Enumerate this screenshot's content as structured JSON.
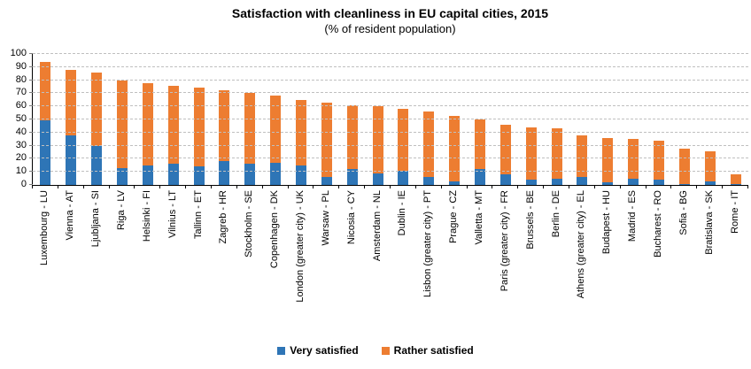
{
  "chart": {
    "title": "Satisfaction with cleanliness in EU capital cities, 2015",
    "subtitle": "(% of resident population)"
  },
  "chart_data": {
    "type": "bar",
    "stacked": true,
    "title": "Satisfaction with cleanliness in EU capital cities, 2015",
    "subtitle": "(% of resident population)",
    "categories": [
      "Luxembourg - LU",
      "Vienna - AT",
      "Ljubljana - SI",
      "Riga - LV",
      "Helsinki - FI",
      "Vilnius - LT",
      "Tallinn - ET",
      "Zagreb - HR",
      "Stockholm - SE",
      "Copenhagen - DK",
      "London (greater city) - UK",
      "Warsaw - PL",
      "Nicosia - CY",
      "Amsterdam - NL",
      "Dublin - IE",
      "Lisbon (greater city) - PT",
      "Prague - CZ",
      "Valletta - MT",
      "Paris (greater city) - FR",
      "Brussels - BE",
      "Berlin - DE",
      "Athens (greater city) - EL",
      "Budapest - HU",
      "Madrid - ES",
      "Bucharest - RO",
      "Sofia - BG",
      "Bratislava - SK",
      "Rome - IT"
    ],
    "series": [
      {
        "name": "Very satisfied",
        "color": "#2e75b6",
        "values": [
          49,
          38,
          30,
          13,
          15,
          16,
          14,
          18,
          16,
          17,
          15,
          6,
          12,
          9,
          11,
          6,
          3,
          12,
          8,
          4,
          5,
          6,
          2,
          5,
          4,
          1,
          3,
          1
        ]
      },
      {
        "name": "Rather satisfied",
        "color": "#ed7d31",
        "values": [
          45,
          50,
          56,
          67,
          63,
          60,
          60,
          54,
          54,
          51,
          50,
          57,
          49,
          51,
          47,
          50,
          50,
          38,
          38,
          40,
          38,
          32,
          34,
          30,
          30,
          27,
          23,
          7
        ]
      }
    ],
    "totals": [
      94,
      88,
      86,
      80,
      78,
      76,
      74,
      72,
      70,
      68,
      65,
      63,
      61,
      60,
      58,
      56,
      53,
      50,
      46,
      44,
      43,
      38,
      36,
      35,
      34,
      28,
      26,
      8
    ],
    "ylim": [
      0,
      100
    ],
    "ytick_step": 10,
    "yticklabels": [
      "0",
      "10",
      "20",
      "30",
      "40",
      "50",
      "60",
      "70",
      "80",
      "90",
      "100"
    ],
    "grid": "horizontal-dashed",
    "gridline_color": "#bfbfbf",
    "axis_color": "#000000",
    "legend_position": "bottom",
    "xlabel": "",
    "ylabel": ""
  }
}
